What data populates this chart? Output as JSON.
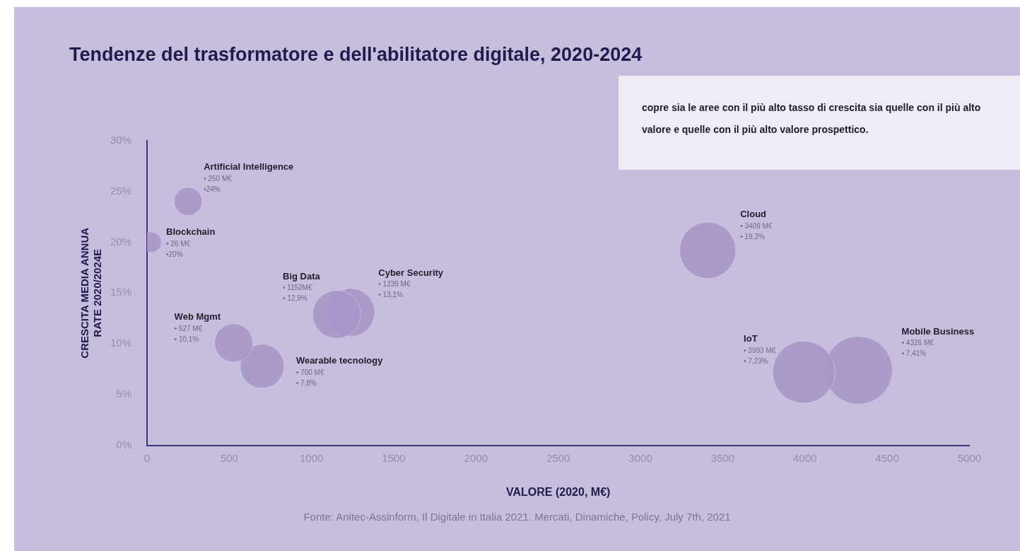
{
  "chart_data": {
    "type": "bubble",
    "title": "Tendenze del trasformatore e dell'abilitatore digitale, 2020-2024",
    "xlabel": "VALORE (2020, M€)",
    "ylabel": "CRESCITA MEDIA ANNUA RATE 2020/2024E",
    "xlim": [
      0,
      5000
    ],
    "xticks": [
      0,
      500,
      1000,
      1500,
      2000,
      2500,
      3000,
      3500,
      4000,
      4500,
      5000
    ],
    "ylim": [
      0,
      30
    ],
    "yticks": [
      {
        "value": 0,
        "label": "0%"
      },
      {
        "value": 5,
        "label": "5%"
      },
      {
        "value": 10,
        "label": "10%"
      },
      {
        "value": 15,
        "label": "15%"
      },
      {
        "value": 20,
        "label": "20%"
      },
      {
        "value": 25,
        "label": "25%"
      },
      {
        "value": 30,
        "label": "30%"
      }
    ],
    "grid": false,
    "legend": false,
    "series": [
      {
        "name": "Blockchain",
        "color": "#a696c8",
        "x": [
          26
        ],
        "values": [
          20
        ],
        "sizes": [
          0.09
        ]
      },
      {
        "name": "Artificial Intelligence",
        "color": "#a696c8",
        "x": [
          250
        ],
        "values": [
          24
        ],
        "sizes": [
          0.17
        ]
      },
      {
        "name": "Web Mgmt",
        "color": "#a696c8",
        "x": [
          527
        ],
        "values": [
          10.1
        ],
        "sizes": [
          0.32
        ]
      },
      {
        "name": "Wearable tecnology",
        "color": "#a696c8",
        "x": [
          700
        ],
        "values": [
          7.8
        ],
        "sizes": [
          0.42
        ]
      },
      {
        "name": "Big Data",
        "color": "#a696c8",
        "x": [
          1152
        ],
        "values": [
          12.9
        ],
        "sizes": [
          0.5
        ]
      },
      {
        "name": "Cyber Security",
        "color": "#a696c8",
        "x": [
          1239
        ],
        "values": [
          13.1
        ],
        "sizes": [
          0.5
        ]
      },
      {
        "name": "Cloud",
        "color": "#a696c8",
        "x": [
          3409
        ],
        "values": [
          19.2
        ],
        "sizes": [
          0.69
        ]
      },
      {
        "name": "IoT",
        "color": "#a696c8",
        "x": [
          3993
        ],
        "values": [
          7.23
        ],
        "sizes": [
          0.84
        ]
      },
      {
        "name": "Mobile Business",
        "color": "#a696c8",
        "x": [
          4326
        ],
        "values": [
          7.41
        ],
        "sizes": [
          1
        ]
      }
    ],
    "annotations": [
      "copre sia le aree con il più alto tasso di crescita sia quelle con il più alto valore  e quelle con il più alto valore prospettico.",
      "Fonte: Anitec-Assinform, Il Digitale  in Italia 2021. Mercati, Dinamiche, Policy, July 7th, 2021",
      "• 26 M€",
      "•20%",
      "• 250 M€",
      "•24%",
      "• 527 M€",
      "• 10,1%",
      "• 700 M€",
      "• 7,8%",
      "• 1152M€",
      "• 12,9%",
      "• 1239 M€",
      "• 13,1%",
      "• 3409 M€",
      "• 19,2%",
      "• 3993 M€",
      "• 7,23%",
      "• 4326 M€",
      "• 7,41%"
    ]
  }
}
